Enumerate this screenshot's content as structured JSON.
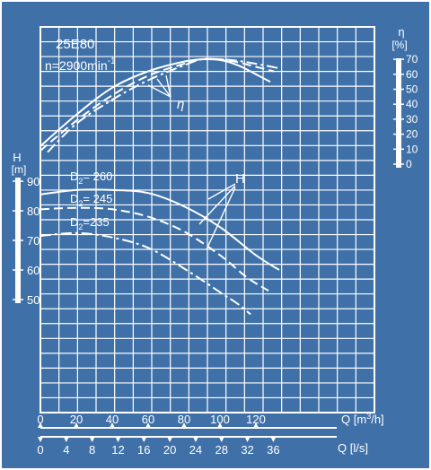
{
  "colors": {
    "background": "#3f71a8",
    "paper": "#e9eff6",
    "ink": "#1f3a66"
  },
  "chart_data": {
    "type": "line",
    "model_label": "25E80",
    "speed_label": "n=2900min",
    "speed_exp": "-1",
    "grid": true,
    "x_axis_flow_m3h": {
      "label_prefix": "Q",
      "label_unit": "[m",
      "label_exp": "3",
      "label_suffix": "/h]",
      "ticks": [
        0,
        20,
        40,
        60,
        80,
        100,
        120
      ],
      "range": [
        0,
        165
      ]
    },
    "x_axis_flow_ls": {
      "label": "Q [l/s]",
      "ticks": [
        0,
        4,
        8,
        12,
        16,
        20,
        24,
        28,
        32,
        36
      ],
      "range": [
        0,
        45.8
      ]
    },
    "head_axis": {
      "label": "H",
      "unit": "[m]",
      "ticks": [
        50,
        60,
        70,
        80,
        90
      ]
    },
    "efficiency_axis": {
      "label": "η",
      "unit": "[%]",
      "ticks": [
        0,
        10,
        20,
        30,
        40,
        50,
        60,
        70
      ]
    },
    "curve_tag_eta": "η",
    "curve_tag_h": "H",
    "head_curves": [
      {
        "name": "D2 = 260",
        "prefix": "D",
        "sub": "2",
        "value": "= 260",
        "style": "solid",
        "x": [
          0,
          20,
          40,
          60,
          80,
          100,
          120,
          133
        ],
        "y": [
          85.5,
          87,
          87,
          86,
          81.5,
          74.5,
          65,
          60
        ]
      },
      {
        "name": "D2 = 245",
        "prefix": "D",
        "sub": "2",
        "value": "= 245",
        "style": "dashed",
        "x": [
          0,
          20,
          40,
          60,
          80,
          100,
          115,
          127
        ],
        "y": [
          80.5,
          81,
          80.5,
          78,
          73,
          65,
          57.5,
          53
        ]
      },
      {
        "name": "D2 = 235",
        "prefix": "D",
        "sub": "2",
        "value": "=235",
        "style": "dashdot",
        "x": [
          0,
          20,
          40,
          60,
          80,
          100,
          110,
          117
        ],
        "y": [
          71.5,
          72.5,
          71,
          67.5,
          60.5,
          52.5,
          48.5,
          45
        ]
      }
    ],
    "efficiency_curves": [
      {
        "style": "solid",
        "x": [
          0,
          20,
          40,
          60,
          80,
          90,
          100,
          110,
          120,
          128
        ],
        "y": [
          12,
          33,
          51,
          62,
          68.5,
          70,
          69.5,
          66,
          60,
          55
        ]
      },
      {
        "style": "dashed",
        "x": [
          0,
          20,
          40,
          60,
          80,
          90,
          100,
          110,
          120,
          130
        ],
        "y": [
          9,
          29,
          46,
          59,
          67,
          70,
          70,
          68,
          65,
          62
        ]
      },
      {
        "style": "dashdot",
        "x": [
          4,
          20,
          40,
          60,
          80,
          90,
          100,
          110,
          120,
          133
        ],
        "y": [
          8,
          27,
          43,
          56,
          66,
          70,
          70,
          69,
          67,
          64
        ]
      }
    ]
  }
}
